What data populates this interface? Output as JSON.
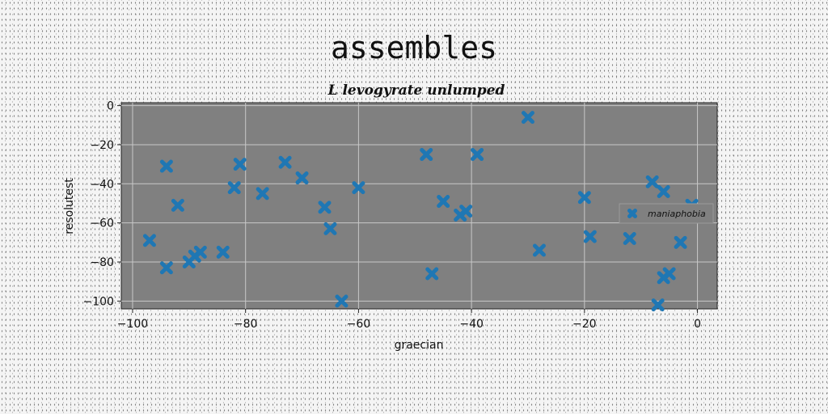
{
  "chart_data": {
    "type": "scatter",
    "title": "assembles",
    "subtitle": "L levogyrate unlumped",
    "xlabel": "graecian",
    "ylabel": "resolutest",
    "xlim": [
      -102,
      3.5
    ],
    "ylim": [
      -104,
      1.5
    ],
    "xticks": [
      -100,
      -80,
      -60,
      -40,
      -20,
      0
    ],
    "yticks": [
      0,
      -20,
      -40,
      -60,
      -80,
      -100
    ],
    "grid": true,
    "legend_position": "center-right",
    "marker": "X",
    "colors": {
      "series": "#1f77b4",
      "plot_bg": "#808080",
      "grid": "#c8c8c8"
    },
    "series": [
      {
        "name": "maniaphobia",
        "points": [
          [
            -97,
            -69
          ],
          [
            -94,
            -83
          ],
          [
            -94,
            -31
          ],
          [
            -92,
            -51
          ],
          [
            -90,
            -80
          ],
          [
            -89,
            -77
          ],
          [
            -88,
            -75
          ],
          [
            -84,
            -75
          ],
          [
            -82,
            -42
          ],
          [
            -81,
            -30
          ],
          [
            -77,
            -45
          ],
          [
            -73,
            -29
          ],
          [
            -70,
            -37
          ],
          [
            -66,
            -52
          ],
          [
            -65,
            -63
          ],
          [
            -63,
            -100
          ],
          [
            -60,
            -42
          ],
          [
            -48,
            -25
          ],
          [
            -47,
            -86
          ],
          [
            -45,
            -49
          ],
          [
            -42,
            -56
          ],
          [
            -41,
            -54
          ],
          [
            -39,
            -25
          ],
          [
            -30,
            -6
          ],
          [
            -28,
            -74
          ],
          [
            -20,
            -47
          ],
          [
            -19,
            -67
          ],
          [
            -12,
            -68
          ],
          [
            -8,
            -39
          ],
          [
            -7,
            -102
          ],
          [
            -6,
            -88
          ],
          [
            -6,
            -44
          ],
          [
            -5,
            -86
          ],
          [
            -3,
            -70
          ],
          [
            -1,
            -51
          ]
        ]
      }
    ]
  }
}
